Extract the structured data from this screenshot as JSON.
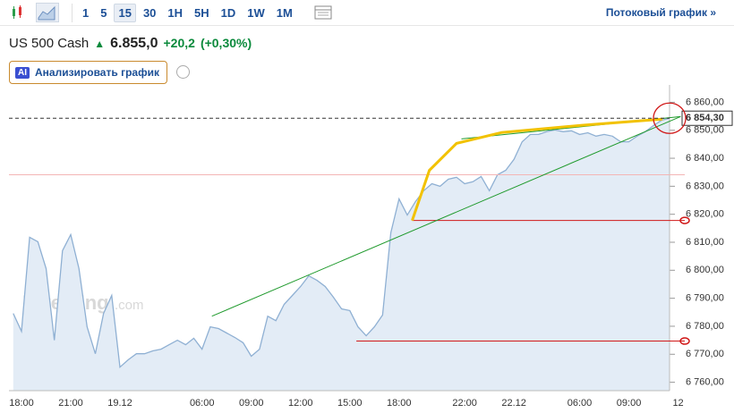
{
  "toolbar": {
    "intervals": [
      "1",
      "5",
      "15",
      "30",
      "1H",
      "5H",
      "1D",
      "1W",
      "1M"
    ],
    "active_interval": "15",
    "stream_link": "Потоковый график »"
  },
  "header": {
    "instrument": "US 500 Cash",
    "price": "6.855,0",
    "change": "+20,2",
    "change_pct": "(+0,30%)"
  },
  "ai_button": {
    "badge": "AI",
    "label": "Анализировать график"
  },
  "chart_data": {
    "type": "area",
    "color": "#8fb0d3",
    "fill": "#e3ecf6",
    "watermark": [
      "Investing",
      ".com"
    ],
    "categories": [
      null,
      "18:00",
      null,
      null,
      null,
      null,
      null,
      "21:00",
      null,
      null,
      null,
      null,
      null,
      "19.12",
      null,
      null,
      null,
      null,
      null,
      null,
      null,
      null,
      null,
      "06:00",
      null,
      null,
      null,
      null,
      null,
      "09:00",
      null,
      null,
      null,
      null,
      null,
      "12:00",
      null,
      null,
      null,
      null,
      null,
      "15:00",
      null,
      null,
      null,
      null,
      null,
      "18:00",
      null,
      null,
      null,
      null,
      null,
      null,
      null,
      "22:00",
      null,
      null,
      null,
      null,
      null,
      "22.12",
      null,
      null,
      null,
      null,
      null,
      null,
      null,
      "06:00",
      null,
      null,
      null,
      null,
      null,
      "09:00",
      null,
      null,
      null,
      null,
      null,
      "12"
    ],
    "values": [
      6784.6,
      6778.2,
      6811.8,
      6810.2,
      6800.6,
      6775.0,
      6807.0,
      6812.7,
      6800.6,
      6779.8,
      6770.2,
      6784.6,
      6791.0,
      6765.4,
      6768.0,
      6770.2,
      6770.2,
      6771.2,
      6771.8,
      6773.4,
      6775.0,
      6773.4,
      6775.7,
      6771.8,
      6779.8,
      6779.2,
      6777.6,
      6776.0,
      6774.1,
      6769.3,
      6771.8,
      6783.6,
      6782.0,
      6787.8,
      6791.0,
      6794.2,
      6798.0,
      6796.4,
      6794.2,
      6790.4,
      6786.2,
      6785.6,
      6779.8,
      6776.6,
      6779.8,
      6784.0,
      6813.4,
      6825.5,
      6819.7,
      6824.5,
      6828.4,
      6830.9,
      6830.0,
      6832.5,
      6833.2,
      6830.9,
      6831.6,
      6833.5,
      6828.4,
      6834.1,
      6835.7,
      6839.6,
      6845.9,
      6848.5,
      6848.5,
      6849.5,
      6850.1,
      6849.5,
      6849.8,
      6848.5,
      6849.1,
      6847.9,
      6848.5,
      6847.9,
      6845.9,
      6845.9,
      6847.9,
      6849.5,
      6851.7,
      6853.6,
      6854.3,
      null
    ],
    "ylim": [
      6757,
      6863
    ],
    "yticks": [
      {
        "value": 6760,
        "label": "6 760,00"
      },
      {
        "value": 6770,
        "label": "6 770,00"
      },
      {
        "value": 6780,
        "label": "6 780,00"
      },
      {
        "value": 6790,
        "label": "6 790,00"
      },
      {
        "value": 6800,
        "label": "6 800,00"
      },
      {
        "value": 6810,
        "label": "6 810,00"
      },
      {
        "value": 6820,
        "label": "6 820,00"
      },
      {
        "value": 6830,
        "label": "6 830,00"
      },
      {
        "value": 6840,
        "label": "6 840,00"
      },
      {
        "value": 6850,
        "label": "6 850,00"
      },
      {
        "value": 6860,
        "label": "6 860,00"
      }
    ],
    "last_price": {
      "value": 6854.3,
      "label": "6 854,30"
    },
    "levels": [
      {
        "value": 6834.1,
        "start": 0,
        "color": "#f3b5b5"
      },
      {
        "value": 6817.8,
        "start": 48.6,
        "color": "#d01818"
      },
      {
        "value": 6774.7,
        "start": 41.8,
        "color": "#d01818"
      }
    ],
    "drawings": [
      {
        "color": "#1f9a2c",
        "x": [
          24.2,
          81.3
        ],
        "y": [
          6783.6,
          6854.9
        ]
      },
      {
        "color": "#1f9a2c",
        "x": [
          54.6,
          81.3
        ],
        "y": [
          6846.9,
          6854.9
        ]
      },
      {
        "color": "#f2c200",
        "x": [
          48.6,
          50.7,
          54,
          59.5,
          69.3,
          79.1
        ],
        "y": [
          6817.8,
          6835.7,
          6845.3,
          6849.2,
          6851.8,
          6854.0
        ]
      }
    ]
  }
}
